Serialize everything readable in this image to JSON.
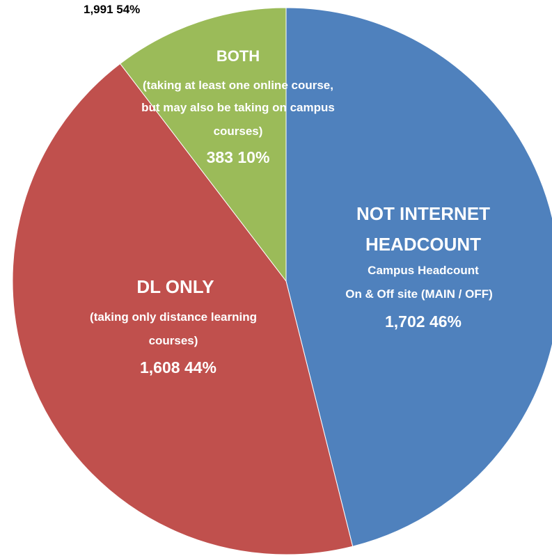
{
  "chart_data": {
    "type": "pie",
    "title": "",
    "corner_label": "1,991  54%",
    "slices": [
      {
        "name": "NOT INTERNET HEADCOUNT",
        "value": 1702,
        "percent": 46,
        "color": "#4F81BD",
        "lines": [
          "NOT INTERNET",
          "HEADCOUNT",
          "Campus Headcount",
          "On & Off site (MAIN / OFF)",
          "1,702  46%"
        ]
      },
      {
        "name": "DL ONLY",
        "value": 1608,
        "percent": 44,
        "color": "#C0504D",
        "lines": [
          "DL ONLY",
          "(taking only distance learning",
          "courses)",
          "1,608  44%"
        ]
      },
      {
        "name": "BOTH",
        "value": 383,
        "percent": 10,
        "color": "#9BBB59",
        "lines": [
          "BOTH",
          "(taking at least one online course,",
          "but may also be taking on campus",
          "courses)",
          "383  10%"
        ]
      }
    ]
  }
}
